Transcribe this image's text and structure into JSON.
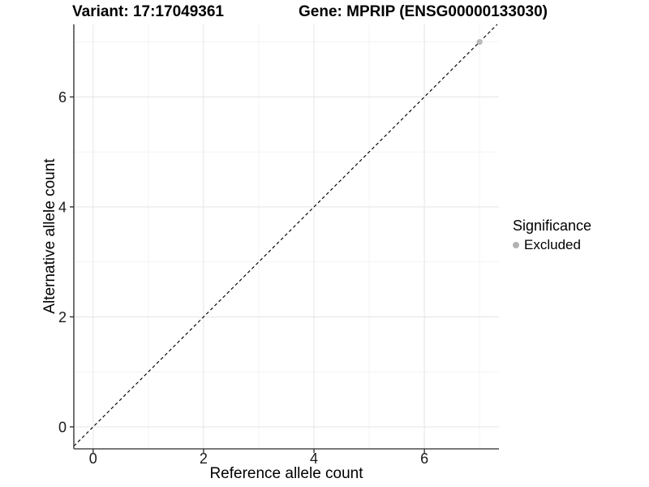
{
  "legend": {
    "title": "Significance",
    "items": [
      {
        "label": "Excluded",
        "color": "#b2b2b2"
      }
    ]
  },
  "chart_data": {
    "type": "scatter",
    "title_left": "Variant: 17:17049361",
    "title_right": "Gene: MPRIP (ENSG00000133030)",
    "xlabel": "Reference allele count",
    "ylabel": "Alternative allele count",
    "xlim": [
      -0.35,
      7.35
    ],
    "ylim": [
      -0.4,
      7.32
    ],
    "x_major_ticks": [
      0,
      2,
      4,
      6
    ],
    "y_major_ticks": [
      0,
      2,
      4,
      6
    ],
    "x_minor_gridlines": [
      1,
      3,
      5,
      7
    ],
    "y_minor_gridlines": [
      1,
      3,
      5,
      7
    ],
    "grid": true,
    "legend_position": "right",
    "points": [
      {
        "x": 7,
        "y": 7,
        "series": "Excluded",
        "color": "#b9b9b9"
      }
    ],
    "reference_line": {
      "type": "identity",
      "slope": 1,
      "intercept": 0,
      "style": "dashed",
      "color": "#000000"
    },
    "colors": {
      "panel_background": "#ffffff",
      "gridline_major": "#e7e7e7",
      "gridline_minor": "#f2f2f2",
      "axis_line": "#4d4d4d",
      "tick_mark": "#333333",
      "tick_text": "#1a1a1a"
    }
  }
}
